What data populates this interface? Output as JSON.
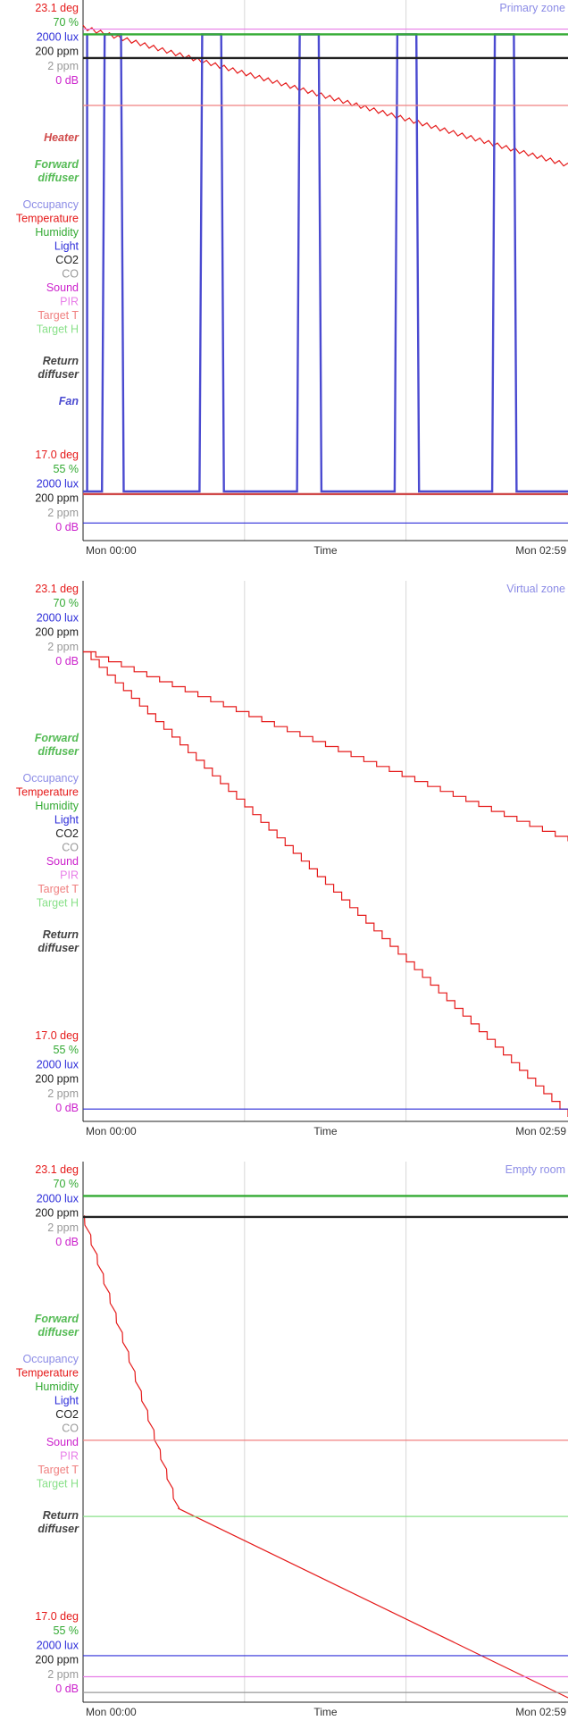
{
  "colors": {
    "temperature": "#e51a1a",
    "humidity": "#33aa33",
    "light": "#2d2dd9",
    "co2": "#222222",
    "co": "#999999",
    "sound": "#cc22cc",
    "pir": "#e87ee8",
    "target_t": "#f08080",
    "target_h": "#88e088",
    "occupancy": "#8c8ce6",
    "fan": "#4a4ad0",
    "heater": "#d04a4a",
    "forward_diffuser": "#55bb55",
    "return_diffuser": "#444444",
    "grid": "#d8d8d8",
    "axis": "#222222"
  },
  "legend": {
    "occupancy": "Occupancy",
    "temperature": "Temperature",
    "humidity": "Humidity",
    "light": "Light",
    "co2": "CO2",
    "co": "CO",
    "sound": "Sound",
    "pir": "PIR",
    "target_t": "Target T",
    "target_h": "Target H"
  },
  "blocks": {
    "heater": "Heater",
    "forward_diffuser": [
      "Forward",
      "diffuser"
    ],
    "return_diffuser": [
      "Return",
      "diffuser"
    ],
    "fan": "Fan"
  },
  "scale_top": {
    "temperature": "23.1 deg",
    "humidity": "70 %",
    "light": "2000 lux",
    "co2": "200 ppm",
    "co": "2 ppm",
    "sound": "0 dB"
  },
  "scale_bottom": {
    "temperature": "17.0 deg",
    "humidity": "55 %",
    "light": "2000 lux",
    "co2": "200 ppm",
    "co": "2 ppm",
    "sound": "0 dB"
  },
  "x_axis": {
    "start": "Mon 00:00",
    "label": "Time",
    "end": "Mon 02:59"
  },
  "chart_data": [
    {
      "type": "line",
      "title": "Primary zone",
      "x_range_min": [
        0,
        179
      ],
      "ylim_temperature": [
        17.0,
        23.1
      ],
      "blocks": [
        "Heater",
        "Forward diffuser",
        "Return diffuser",
        "Fan"
      ],
      "series": [
        {
          "name": "Temperature",
          "kind": "sawtooth",
          "x": [
            0,
            179
          ],
          "y": [
            22.9,
            21.3
          ],
          "teeth": 55
        },
        {
          "name": "Fan",
          "kind": "step",
          "x_on_start": [
            7,
            43,
            79,
            115,
            151
          ],
          "x_on_end": [
            15,
            52,
            88,
            124,
            160
          ]
        },
        {
          "name": "Humidity",
          "kind": "constant",
          "value_frac": 0.955
        },
        {
          "name": "CO2",
          "kind": "constant",
          "value_frac": 0.91
        },
        {
          "name": "Target T",
          "kind": "constant",
          "value": 22.0
        },
        {
          "name": "Heater",
          "kind": "constant",
          "value_frac": 0.08
        },
        {
          "name": "Light",
          "kind": "constant",
          "value_frac": 0.025
        },
        {
          "name": "PIR",
          "kind": "constant",
          "value_frac": 0.965
        }
      ]
    },
    {
      "type": "line",
      "title": "Virtual zone",
      "x_range_min": [
        0,
        179
      ],
      "ylim_temperature": [
        17.0,
        23.1
      ],
      "blocks": [
        "Forward diffuser",
        "Return diffuser"
      ],
      "series": [
        {
          "name": "Temperature",
          "kind": "staircase",
          "x": [
            0,
            179
          ],
          "y": [
            22.4,
            20.2
          ],
          "steps": 38
        },
        {
          "name": "Temperature",
          "kind": "staircase",
          "x": [
            0,
            179
          ],
          "y": [
            22.4,
            17.0
          ],
          "steps": 60
        },
        {
          "name": "Light",
          "kind": "constant",
          "value_frac": 0.015
        }
      ]
    },
    {
      "type": "line",
      "title": "Empty room",
      "x_range_min": [
        0,
        179
      ],
      "ylim_temperature": [
        17.0,
        23.1
      ],
      "blocks": [
        "Forward diffuser",
        "Return diffuser"
      ],
      "series": [
        {
          "name": "Temperature",
          "kind": "wavy",
          "x": [
            0,
            35
          ],
          "y": [
            22.6,
            19.2
          ]
        },
        {
          "name": "Temperature",
          "kind": "linear",
          "x": [
            35,
            179
          ],
          "y": [
            19.2,
            17.0
          ]
        },
        {
          "name": "Humidity",
          "kind": "constant",
          "value_frac": 0.955
        },
        {
          "name": "CO2",
          "kind": "constant",
          "value_frac": 0.915
        },
        {
          "name": "Target T",
          "kind": "constant",
          "value_frac": 0.49
        },
        {
          "name": "Target H",
          "kind": "constant",
          "value_frac": 0.345
        },
        {
          "name": "Light",
          "kind": "constant",
          "value_frac": 0.08
        },
        {
          "name": "PIR",
          "kind": "constant",
          "value_frac": 0.04
        },
        {
          "name": "CO",
          "kind": "constant",
          "value_frac": 0.01
        }
      ]
    }
  ]
}
